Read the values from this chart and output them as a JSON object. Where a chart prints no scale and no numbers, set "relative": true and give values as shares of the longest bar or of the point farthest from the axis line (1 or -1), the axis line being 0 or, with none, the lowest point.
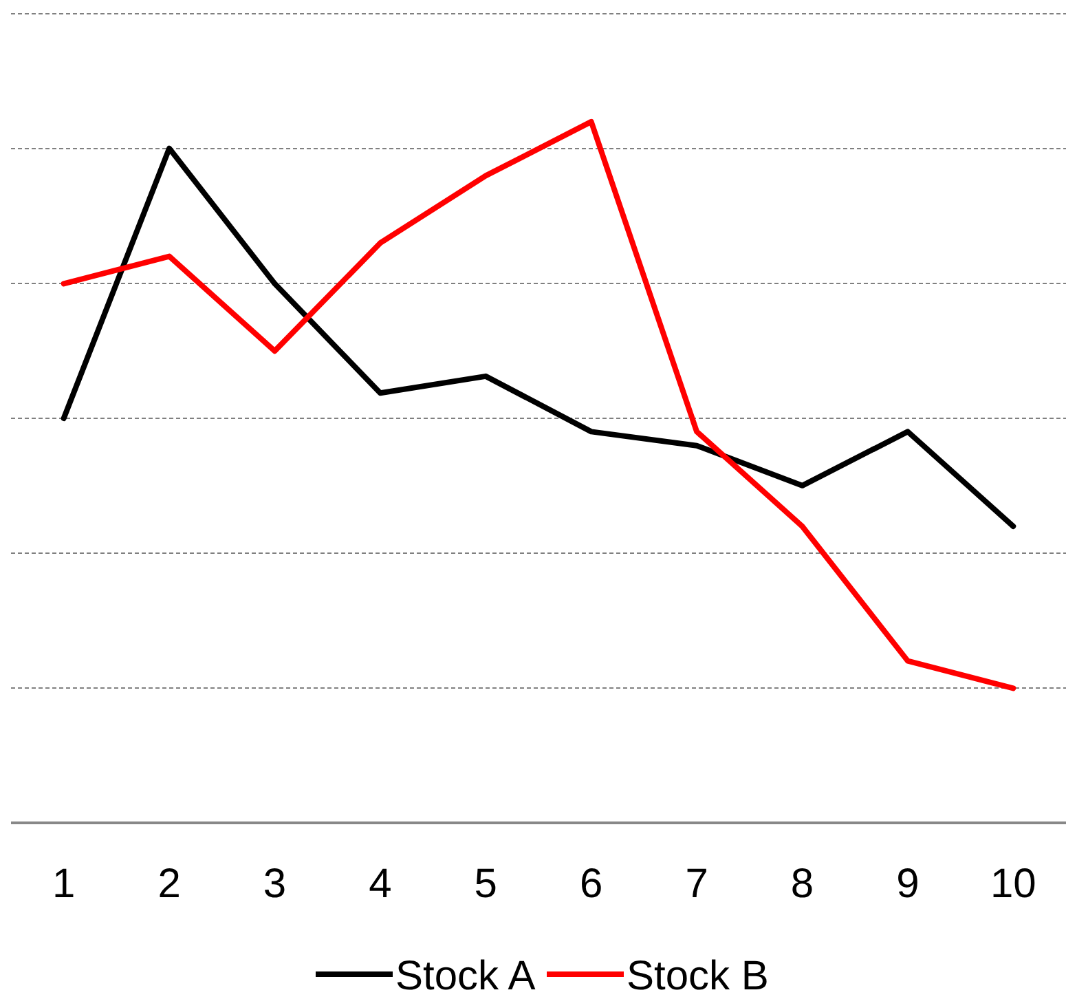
{
  "chart_data": {
    "type": "line",
    "relative": true,
    "categories": [
      "1",
      "2",
      "3",
      "4",
      "5",
      "6",
      "7",
      "8",
      "9",
      "10"
    ],
    "grid": "y",
    "legend": "bottom",
    "line_style": "solid",
    "marker": "none",
    "series": [
      {
        "name": "Stock A",
        "color": "#000000",
        "values": [
          0.577,
          0.962,
          0.769,
          0.613,
          0.637,
          0.558,
          0.538,
          0.481,
          0.558,
          0.423
        ]
      },
      {
        "name": "Stock B",
        "color": "#ff0000",
        "values": [
          0.769,
          0.808,
          0.673,
          0.827,
          0.923,
          1,
          0.558,
          0.423,
          0.231,
          0.192
        ]
      }
    ]
  }
}
